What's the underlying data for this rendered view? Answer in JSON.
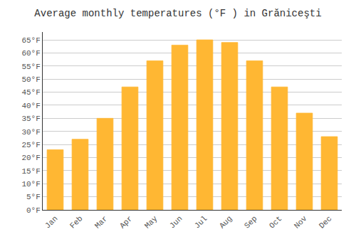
{
  "chart_data": {
    "type": "bar",
    "title": "Average monthly temperatures (°F ) in Grăniceşti",
    "categories": [
      "Jan",
      "Feb",
      "Mar",
      "Apr",
      "May",
      "Jun",
      "Jul",
      "Aug",
      "Sep",
      "Oct",
      "Nov",
      "Dec"
    ],
    "values": [
      23,
      27,
      35,
      47,
      57,
      63,
      65,
      64,
      57,
      47,
      37,
      28
    ],
    "color": "#FFB733",
    "ylim": [
      0,
      68
    ],
    "yticks": [
      {
        "value": 0,
        "label": "0°F"
      },
      {
        "value": 5,
        "label": "5°F"
      },
      {
        "value": 10,
        "label": "10°F"
      },
      {
        "value": 15,
        "label": "15°F"
      },
      {
        "value": 20,
        "label": "20°F"
      },
      {
        "value": 25,
        "label": "25°F"
      },
      {
        "value": 30,
        "label": "30°F"
      },
      {
        "value": 35,
        "label": "35°F"
      },
      {
        "value": 40,
        "label": "40°F"
      },
      {
        "value": 45,
        "label": "45°F"
      },
      {
        "value": 50,
        "label": "50°F"
      },
      {
        "value": 55,
        "label": "55°F"
      },
      {
        "value": 60,
        "label": "60°F"
      },
      {
        "value": 65,
        "label": "65°F"
      }
    ],
    "grid": true
  }
}
